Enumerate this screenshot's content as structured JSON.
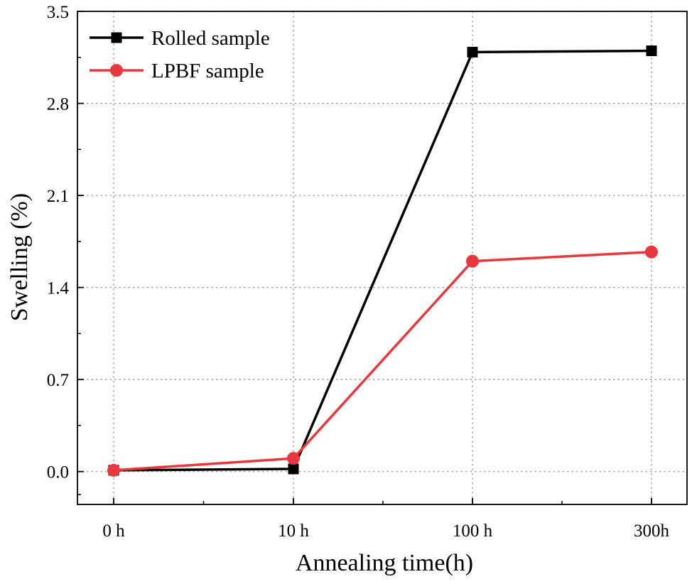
{
  "chart_data": {
    "type": "line",
    "title": "",
    "xlabel": "Annealing time(h)",
    "ylabel": "Swelling (%)",
    "categories": [
      "0 h",
      "10 h",
      "100 h",
      "300h"
    ],
    "ylim": [
      -0.25,
      3.5
    ],
    "yticks": [
      0.0,
      0.7,
      1.4,
      2.1,
      2.8,
      3.5
    ],
    "ytick_labels": [
      "0.0",
      "0.7",
      "1.4",
      "2.1",
      "2.8",
      "3.5"
    ],
    "grid": true,
    "legend_position": "top-left",
    "series": [
      {
        "name": "Rolled sample",
        "marker": "square",
        "color": "#000000",
        "values": [
          0.01,
          0.02,
          3.19,
          3.2
        ]
      },
      {
        "name": "LPBF sample",
        "marker": "circle",
        "color": "#e8383d",
        "values": [
          0.01,
          0.1,
          1.6,
          1.67
        ]
      }
    ]
  }
}
